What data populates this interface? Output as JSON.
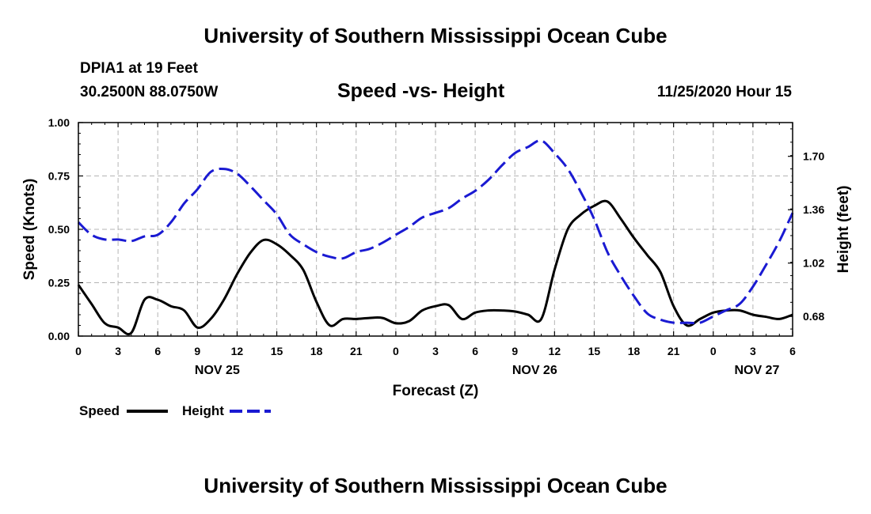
{
  "header": {
    "title": "University of Southern Mississippi Ocean Cube",
    "station": "DPIA1 at 19 Feet",
    "coordinates": "30.2500N 88.0750W",
    "chart_title": "Speed -vs- Height",
    "datetime": "11/25/2020 Hour 15"
  },
  "footer": {
    "title": "University of Southern Mississippi Ocean Cube"
  },
  "colors": {
    "speed": "#000000",
    "height": "#1a1ad2",
    "grid": "#b4b4b4"
  },
  "chart_data": {
    "type": "line",
    "title": "Speed -vs- Height",
    "xlabel": "Forecast (Z)",
    "ylabel": "Speed (Knots)",
    "y2label": "Height (feet)",
    "xlim": [
      0,
      54
    ],
    "ylim": [
      0,
      1.0
    ],
    "y2lim": [
      0.555,
      1.915
    ],
    "grid": true,
    "legend_position": "bottom-left",
    "x_ticks": [
      0,
      3,
      6,
      9,
      12,
      15,
      18,
      21,
      24,
      27,
      30,
      33,
      36,
      39,
      42,
      45,
      48,
      51,
      54
    ],
    "x_tick_labels": [
      "0",
      "3",
      "6",
      "9",
      "12",
      "15",
      "18",
      "21",
      "0",
      "3",
      "6",
      "9",
      "12",
      "15",
      "18",
      "21",
      "0",
      "3",
      "6"
    ],
    "day_labels": [
      {
        "x": 10.5,
        "label": "NOV 25"
      },
      {
        "x": 34.5,
        "label": "NOV 26"
      },
      {
        "x": 51.3,
        "label": "NOV 27"
      }
    ],
    "y_ticks": [
      0.0,
      0.25,
      0.5,
      0.75,
      1.0
    ],
    "y_tick_labels": [
      "0.00",
      "0.25",
      "0.50",
      "0.75",
      "1.00"
    ],
    "y2_ticks": [
      0.68,
      1.02,
      1.36,
      1.7
    ],
    "y2_tick_labels": [
      "0.68",
      "1.02",
      "1.36",
      "1.70"
    ],
    "series": [
      {
        "name": "Speed",
        "axis": "left",
        "style": "solid",
        "x": [
          0,
          1,
          2,
          3,
          4,
          5,
          6,
          7,
          8,
          9,
          10,
          11,
          12,
          13,
          14,
          15,
          16,
          17,
          18,
          19,
          20,
          21,
          22,
          23,
          24,
          25,
          26,
          27,
          28,
          29,
          30,
          31,
          32,
          33,
          34,
          35,
          36,
          37,
          38,
          39,
          40,
          41,
          42,
          43,
          44,
          45,
          46,
          47,
          48,
          49,
          50,
          51,
          52,
          53,
          54
        ],
        "values": [
          0.24,
          0.15,
          0.06,
          0.04,
          0.015,
          0.17,
          0.17,
          0.14,
          0.12,
          0.04,
          0.08,
          0.17,
          0.29,
          0.39,
          0.45,
          0.43,
          0.38,
          0.31,
          0.16,
          0.05,
          0.08,
          0.08,
          0.085,
          0.085,
          0.06,
          0.07,
          0.12,
          0.14,
          0.145,
          0.08,
          0.11,
          0.12,
          0.12,
          0.115,
          0.1,
          0.08,
          0.31,
          0.5,
          0.57,
          0.61,
          0.63,
          0.55,
          0.46,
          0.38,
          0.3,
          0.14,
          0.05,
          0.08,
          0.11,
          0.12,
          0.12,
          0.1,
          0.09,
          0.08,
          0.1
        ]
      },
      {
        "name": "Height",
        "axis": "right",
        "style": "dashed",
        "x": [
          0,
          1,
          2,
          3,
          4,
          5,
          6,
          7,
          8,
          9,
          10,
          11,
          12,
          13,
          14,
          15,
          16,
          17,
          18,
          19,
          20,
          21,
          22,
          23,
          24,
          25,
          26,
          27,
          28,
          29,
          30,
          31,
          32,
          33,
          34,
          35,
          36,
          37,
          38,
          39,
          40,
          41,
          42,
          43,
          44,
          45,
          46,
          47,
          48,
          49,
          50,
          51,
          52,
          53,
          54
        ],
        "values": [
          1.28,
          1.2,
          1.17,
          1.17,
          1.16,
          1.19,
          1.2,
          1.28,
          1.4,
          1.49,
          1.6,
          1.62,
          1.59,
          1.51,
          1.42,
          1.33,
          1.2,
          1.14,
          1.09,
          1.06,
          1.05,
          1.09,
          1.11,
          1.15,
          1.2,
          1.25,
          1.31,
          1.34,
          1.37,
          1.43,
          1.48,
          1.55,
          1.64,
          1.72,
          1.76,
          1.8,
          1.72,
          1.62,
          1.47,
          1.3,
          1.09,
          0.94,
          0.81,
          0.7,
          0.66,
          0.64,
          0.64,
          0.64,
          0.68,
          0.72,
          0.76,
          0.87,
          1.01,
          1.16,
          1.34
        ]
      }
    ]
  }
}
